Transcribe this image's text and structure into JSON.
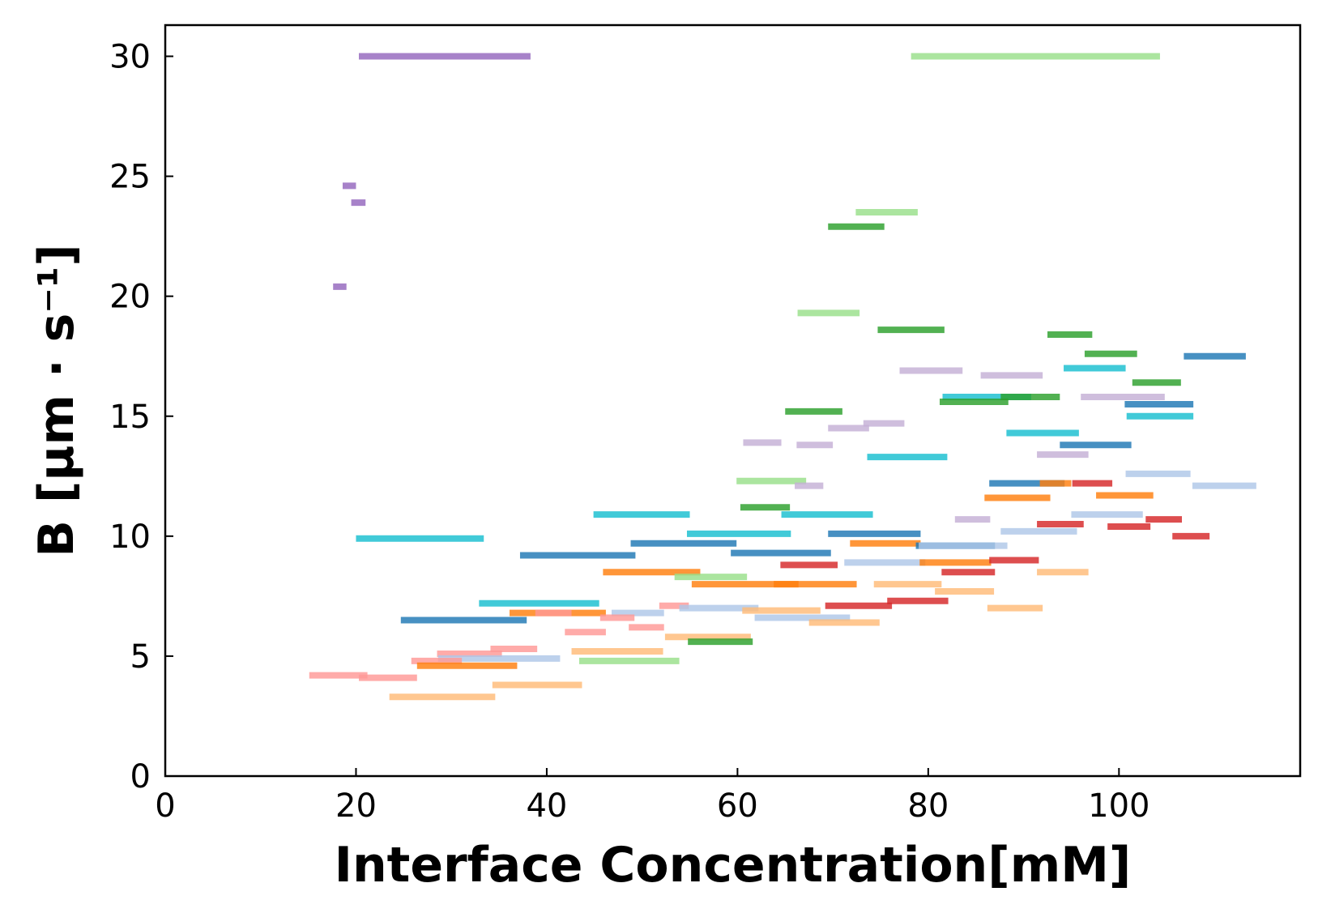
{
  "chart_data": {
    "type": "segments",
    "xlabel": "Interface Concentration[mM]",
    "ylabel": "B [µm · s⁻¹]",
    "xlim": [
      0,
      119
    ],
    "ylim": [
      0,
      31.3
    ],
    "xticks": [
      0,
      20,
      40,
      60,
      80,
      100
    ],
    "yticks": [
      0,
      5,
      10,
      15,
      20,
      25,
      30
    ],
    "grid": false,
    "legend": "none",
    "colors": {
      "blue": "#1f77b4",
      "light_blue": "#aec7e8",
      "orange": "#ff7f0e",
      "light_orange": "#ffbb78",
      "green": "#2ca02c",
      "light_green": "#98df8a",
      "red": "#d62728",
      "pink": "#ff9896",
      "purple": "#9467bd",
      "lavender": "#c5b0d5",
      "cyan": "#17becf"
    },
    "segments": [
      {
        "x0": 20.3,
        "x1": 38.3,
        "y": 30.0,
        "color": "purple"
      },
      {
        "x0": 78.2,
        "x1": 104.3,
        "y": 30.0,
        "color": "light_green"
      },
      {
        "x0": 18.6,
        "x1": 20.0,
        "y": 24.6,
        "color": "purple"
      },
      {
        "x0": 19.5,
        "x1": 21.0,
        "y": 23.9,
        "color": "purple"
      },
      {
        "x0": 17.6,
        "x1": 19.0,
        "y": 20.4,
        "color": "purple"
      },
      {
        "x0": 72.4,
        "x1": 78.9,
        "y": 23.5,
        "color": "light_green"
      },
      {
        "x0": 69.5,
        "x1": 75.4,
        "y": 22.9,
        "color": "green"
      },
      {
        "x0": 66.3,
        "x1": 72.8,
        "y": 19.3,
        "color": "light_green"
      },
      {
        "x0": 74.7,
        "x1": 81.7,
        "y": 18.6,
        "color": "green"
      },
      {
        "x0": 92.5,
        "x1": 97.2,
        "y": 18.4,
        "color": "green"
      },
      {
        "x0": 96.4,
        "x1": 101.9,
        "y": 17.6,
        "color": "green"
      },
      {
        "x0": 106.8,
        "x1": 113.3,
        "y": 17.5,
        "color": "blue"
      },
      {
        "x0": 94.2,
        "x1": 100.7,
        "y": 17.0,
        "color": "cyan"
      },
      {
        "x0": 77.0,
        "x1": 83.6,
        "y": 16.9,
        "color": "lavender"
      },
      {
        "x0": 85.5,
        "x1": 92.0,
        "y": 16.7,
        "color": "lavender"
      },
      {
        "x0": 101.4,
        "x1": 106.5,
        "y": 16.4,
        "color": "green"
      },
      {
        "x0": 96.0,
        "x1": 104.8,
        "y": 15.8,
        "color": "lavender"
      },
      {
        "x0": 81.5,
        "x1": 90.8,
        "y": 15.8,
        "color": "cyan"
      },
      {
        "x0": 87.6,
        "x1": 93.8,
        "y": 15.8,
        "color": "green"
      },
      {
        "x0": 81.2,
        "x1": 88.4,
        "y": 15.6,
        "color": "green"
      },
      {
        "x0": 100.6,
        "x1": 107.8,
        "y": 15.5,
        "color": "blue"
      },
      {
        "x0": 65.0,
        "x1": 71.0,
        "y": 15.2,
        "color": "green"
      },
      {
        "x0": 100.8,
        "x1": 107.8,
        "y": 15.0,
        "color": "cyan"
      },
      {
        "x0": 73.2,
        "x1": 77.5,
        "y": 14.7,
        "color": "lavender"
      },
      {
        "x0": 69.5,
        "x1": 73.8,
        "y": 14.5,
        "color": "lavender"
      },
      {
        "x0": 88.2,
        "x1": 95.8,
        "y": 14.3,
        "color": "cyan"
      },
      {
        "x0": 60.6,
        "x1": 64.6,
        "y": 13.9,
        "color": "lavender"
      },
      {
        "x0": 66.2,
        "x1": 70.0,
        "y": 13.8,
        "color": "lavender"
      },
      {
        "x0": 93.8,
        "x1": 101.3,
        "y": 13.8,
        "color": "blue"
      },
      {
        "x0": 73.6,
        "x1": 82.0,
        "y": 13.3,
        "color": "cyan"
      },
      {
        "x0": 91.4,
        "x1": 96.8,
        "y": 13.4,
        "color": "lavender"
      },
      {
        "x0": 100.7,
        "x1": 107.5,
        "y": 12.6,
        "color": "light_blue"
      },
      {
        "x0": 59.9,
        "x1": 67.2,
        "y": 12.3,
        "color": "light_green"
      },
      {
        "x0": 66.0,
        "x1": 69.0,
        "y": 12.1,
        "color": "lavender"
      },
      {
        "x0": 86.4,
        "x1": 94.3,
        "y": 12.2,
        "color": "blue"
      },
      {
        "x0": 91.7,
        "x1": 95.0,
        "y": 12.2,
        "color": "orange"
      },
      {
        "x0": 95.1,
        "x1": 99.3,
        "y": 12.2,
        "color": "red"
      },
      {
        "x0": 107.7,
        "x1": 114.4,
        "y": 12.1,
        "color": "light_blue"
      },
      {
        "x0": 85.9,
        "x1": 92.8,
        "y": 11.6,
        "color": "orange"
      },
      {
        "x0": 97.6,
        "x1": 103.6,
        "y": 11.7,
        "color": "orange"
      },
      {
        "x0": 60.3,
        "x1": 65.5,
        "y": 11.2,
        "color": "green"
      },
      {
        "x0": 44.9,
        "x1": 55.0,
        "y": 10.9,
        "color": "cyan"
      },
      {
        "x0": 64.6,
        "x1": 74.2,
        "y": 10.9,
        "color": "cyan"
      },
      {
        "x0": 95.0,
        "x1": 102.5,
        "y": 10.9,
        "color": "light_blue"
      },
      {
        "x0": 82.8,
        "x1": 86.5,
        "y": 10.7,
        "color": "lavender"
      },
      {
        "x0": 102.8,
        "x1": 106.6,
        "y": 10.7,
        "color": "red"
      },
      {
        "x0": 91.4,
        "x1": 96.3,
        "y": 10.5,
        "color": "red"
      },
      {
        "x0": 98.8,
        "x1": 103.3,
        "y": 10.4,
        "color": "red"
      },
      {
        "x0": 20.0,
        "x1": 33.4,
        "y": 9.9,
        "color": "cyan"
      },
      {
        "x0": 54.7,
        "x1": 65.6,
        "y": 10.1,
        "color": "cyan"
      },
      {
        "x0": 69.5,
        "x1": 79.2,
        "y": 10.1,
        "color": "blue"
      },
      {
        "x0": 87.6,
        "x1": 95.6,
        "y": 10.2,
        "color": "light_blue"
      },
      {
        "x0": 105.6,
        "x1": 109.5,
        "y": 10.0,
        "color": "red"
      },
      {
        "x0": 48.8,
        "x1": 59.9,
        "y": 9.7,
        "color": "blue"
      },
      {
        "x0": 71.8,
        "x1": 79.2,
        "y": 9.7,
        "color": "orange"
      },
      {
        "x0": 78.7,
        "x1": 87.0,
        "y": 9.6,
        "color": "blue"
      },
      {
        "x0": 79.0,
        "x1": 88.3,
        "y": 9.6,
        "color": "light_blue"
      },
      {
        "x0": 37.2,
        "x1": 49.3,
        "y": 9.2,
        "color": "blue"
      },
      {
        "x0": 59.3,
        "x1": 69.8,
        "y": 9.3,
        "color": "blue"
      },
      {
        "x0": 71.2,
        "x1": 79.7,
        "y": 8.9,
        "color": "light_blue"
      },
      {
        "x0": 79.1,
        "x1": 86.6,
        "y": 8.9,
        "color": "orange"
      },
      {
        "x0": 86.4,
        "x1": 91.6,
        "y": 9.0,
        "color": "red"
      },
      {
        "x0": 64.5,
        "x1": 70.5,
        "y": 8.8,
        "color": "red"
      },
      {
        "x0": 45.9,
        "x1": 56.1,
        "y": 8.5,
        "color": "orange"
      },
      {
        "x0": 53.4,
        "x1": 61.0,
        "y": 8.3,
        "color": "light_green"
      },
      {
        "x0": 81.4,
        "x1": 87.0,
        "y": 8.5,
        "color": "red"
      },
      {
        "x0": 91.4,
        "x1": 96.8,
        "y": 8.5,
        "color": "light_orange"
      },
      {
        "x0": 55.2,
        "x1": 66.4,
        "y": 8.0,
        "color": "orange"
      },
      {
        "x0": 63.8,
        "x1": 72.5,
        "y": 8.0,
        "color": "orange"
      },
      {
        "x0": 74.3,
        "x1": 81.4,
        "y": 8.0,
        "color": "light_orange"
      },
      {
        "x0": 80.7,
        "x1": 86.9,
        "y": 7.7,
        "color": "light_orange"
      },
      {
        "x0": 75.7,
        "x1": 82.1,
        "y": 7.3,
        "color": "red"
      },
      {
        "x0": 69.2,
        "x1": 76.2,
        "y": 7.1,
        "color": "red"
      },
      {
        "x0": 86.2,
        "x1": 92.0,
        "y": 7.0,
        "color": "light_orange"
      },
      {
        "x0": 32.9,
        "x1": 45.5,
        "y": 7.2,
        "color": "cyan"
      },
      {
        "x0": 51.8,
        "x1": 54.9,
        "y": 7.1,
        "color": "pink"
      },
      {
        "x0": 53.9,
        "x1": 62.2,
        "y": 7.0,
        "color": "light_blue"
      },
      {
        "x0": 60.5,
        "x1": 68.7,
        "y": 6.9,
        "color": "light_orange"
      },
      {
        "x0": 36.1,
        "x1": 46.2,
        "y": 6.8,
        "color": "orange"
      },
      {
        "x0": 38.8,
        "x1": 42.6,
        "y": 6.8,
        "color": "pink"
      },
      {
        "x0": 46.8,
        "x1": 52.3,
        "y": 6.8,
        "color": "light_blue"
      },
      {
        "x0": 45.6,
        "x1": 49.2,
        "y": 6.6,
        "color": "pink"
      },
      {
        "x0": 61.8,
        "x1": 71.8,
        "y": 6.6,
        "color": "light_blue"
      },
      {
        "x0": 67.5,
        "x1": 74.9,
        "y": 6.4,
        "color": "light_orange"
      },
      {
        "x0": 24.7,
        "x1": 37.9,
        "y": 6.5,
        "color": "blue"
      },
      {
        "x0": 48.6,
        "x1": 52.3,
        "y": 6.2,
        "color": "pink"
      },
      {
        "x0": 41.9,
        "x1": 46.2,
        "y": 6.0,
        "color": "pink"
      },
      {
        "x0": 52.4,
        "x1": 61.4,
        "y": 5.8,
        "color": "light_orange"
      },
      {
        "x0": 54.8,
        "x1": 61.6,
        "y": 5.6,
        "color": "green"
      },
      {
        "x0": 42.6,
        "x1": 52.2,
        "y": 5.2,
        "color": "light_orange"
      },
      {
        "x0": 34.1,
        "x1": 39.0,
        "y": 5.3,
        "color": "pink"
      },
      {
        "x0": 28.5,
        "x1": 35.3,
        "y": 5.1,
        "color": "pink"
      },
      {
        "x0": 28.6,
        "x1": 41.4,
        "y": 4.9,
        "color": "light_blue"
      },
      {
        "x0": 25.8,
        "x1": 31.1,
        "y": 4.8,
        "color": "pink"
      },
      {
        "x0": 43.4,
        "x1": 53.9,
        "y": 4.8,
        "color": "light_green"
      },
      {
        "x0": 26.4,
        "x1": 36.9,
        "y": 4.6,
        "color": "orange"
      },
      {
        "x0": 15.1,
        "x1": 21.2,
        "y": 4.2,
        "color": "pink"
      },
      {
        "x0": 20.3,
        "x1": 26.4,
        "y": 4.1,
        "color": "pink"
      },
      {
        "x0": 34.3,
        "x1": 43.7,
        "y": 3.8,
        "color": "light_orange"
      },
      {
        "x0": 23.5,
        "x1": 34.6,
        "y": 3.3,
        "color": "light_orange"
      }
    ]
  }
}
